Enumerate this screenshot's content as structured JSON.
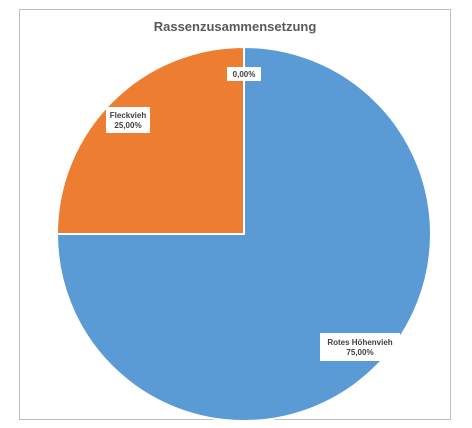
{
  "chart_data": {
    "type": "pie",
    "title": "Rassenzusammensetzung",
    "slices": [
      {
        "label": "Rotes Höhenvieh",
        "value": 75,
        "display": "75,00%",
        "color": "#5b9bd5"
      },
      {
        "label": "Fleckvieh",
        "value": 25,
        "display": "25,00%",
        "color": "#ed7d31"
      },
      {
        "label": "",
        "value": 0,
        "display": "0,00%",
        "color": "#a5a5a5"
      }
    ],
    "legend": "none",
    "data_labels": "category and percent"
  }
}
